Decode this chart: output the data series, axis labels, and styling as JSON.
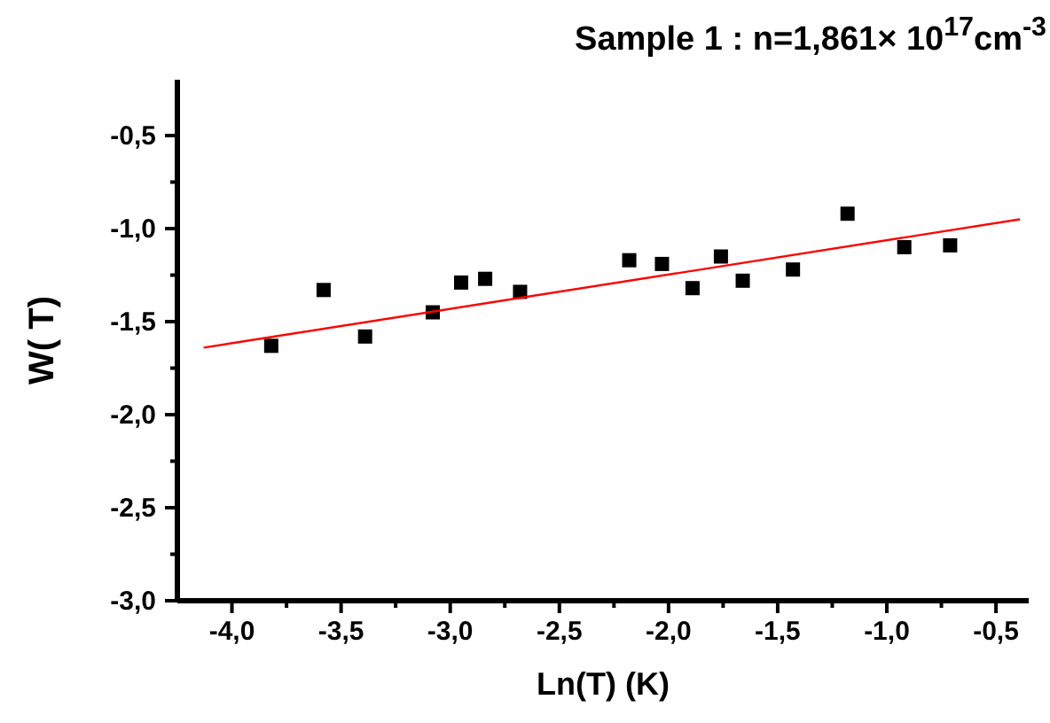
{
  "chart_data": {
    "type": "scatter",
    "title": "Sample 1 : n=1,861× 10$^{17}$cm$^{-3}$",
    "xlabel": "Ln(T) (K)",
    "ylabel": "W( T)",
    "xlim": [
      -4.25,
      -0.35
    ],
    "ylim": [
      -3.0,
      -0.2
    ],
    "xticks": [
      {
        "value": -4,
        "label": "-4,0"
      },
      {
        "value": -3.75,
        "label": null
      },
      {
        "value": -3.5,
        "label": "-3,5"
      },
      {
        "value": -3.25,
        "label": null
      },
      {
        "value": -3,
        "label": "-3,0"
      },
      {
        "value": -2.75,
        "label": null
      },
      {
        "value": -2.5,
        "label": "-2,5"
      },
      {
        "value": -2.25,
        "label": null
      },
      {
        "value": -2,
        "label": "-2,0"
      },
      {
        "value": -1.75,
        "label": null
      },
      {
        "value": -1.5,
        "label": "-1,5"
      },
      {
        "value": -1.25,
        "label": null
      },
      {
        "value": -1,
        "label": "-1,0"
      },
      {
        "value": -0.75,
        "label": null
      },
      {
        "value": -0.5,
        "label": "-0,5"
      }
    ],
    "yticks": [
      {
        "value": -3,
        "label": "-3,0"
      },
      {
        "value": -2.75,
        "label": null
      },
      {
        "value": -2.5,
        "label": "-2,5"
      },
      {
        "value": -2.25,
        "label": null
      },
      {
        "value": -2,
        "label": "-2,0"
      },
      {
        "value": -1.75,
        "label": null
      },
      {
        "value": -1.5,
        "label": "-1,5"
      },
      {
        "value": -1.25,
        "label": null
      },
      {
        "value": -1,
        "label": "-1,0"
      },
      {
        "value": -0.75,
        "label": null
      },
      {
        "value": -0.5,
        "label": "-0,5"
      }
    ],
    "grid": false,
    "series": [
      {
        "color": "#000000",
        "marker": "square",
        "x": [
          -3.82,
          -3.58,
          -3.39,
          -3.08,
          -2.95,
          -2.84,
          -2.68,
          -2.18,
          -2.03,
          -1.89,
          -1.76,
          -1.66,
          -1.43,
          -1.18,
          -0.92,
          -0.71
        ],
        "values": [
          -1.63,
          -1.33,
          -1.58,
          -1.45,
          -1.29,
          -1.27,
          -1.34,
          -1.17,
          -1.19,
          -1.32,
          -1.15,
          -1.28,
          -1.22,
          -0.92,
          -1.1,
          -1.09
        ]
      },
      {
        "type": "line",
        "color": "#ff0000",
        "marker": "none",
        "line_style": "solid",
        "x": [
          -4.13,
          -0.39
        ],
        "values": [
          -1.64,
          -0.95
        ]
      }
    ]
  }
}
